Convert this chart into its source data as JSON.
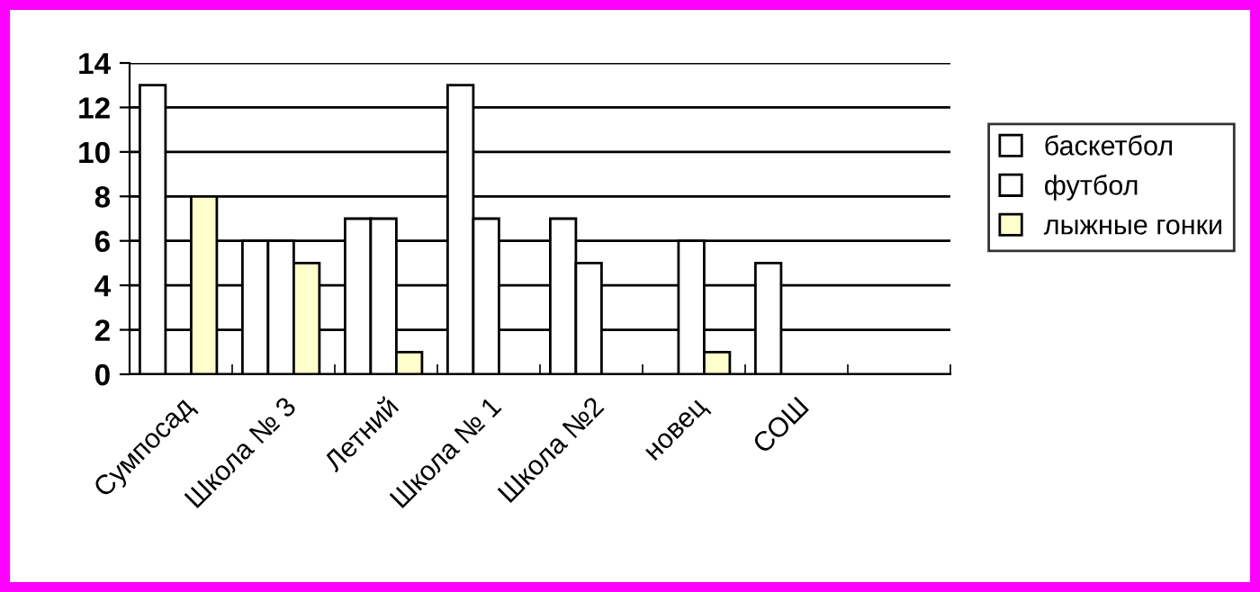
{
  "chart_data": {
    "type": "bar",
    "categories": [
      "Сумпосад",
      "Школа № 3",
      "Летний",
      "Школа № 1",
      "Школа №2",
      "новец",
      "СОШ",
      null
    ],
    "series": [
      {
        "name": "баскетбол",
        "color": "#ffffff",
        "values": [
          13,
          6,
          7,
          13,
          7,
          null,
          5,
          null
        ]
      },
      {
        "name": "футбол",
        "color": "#ffffff",
        "values": [
          null,
          6,
          7,
          7,
          5,
          6,
          null,
          null
        ]
      },
      {
        "name": "лыжные гонки",
        "color": "#ffffcc",
        "values": [
          8,
          5,
          1,
          null,
          null,
          1,
          null,
          null
        ]
      }
    ],
    "ylim": [
      0,
      14
    ],
    "yticks": [
      0,
      2,
      4,
      6,
      8,
      10,
      12,
      14
    ],
    "grid": "y",
    "legend": "right"
  }
}
